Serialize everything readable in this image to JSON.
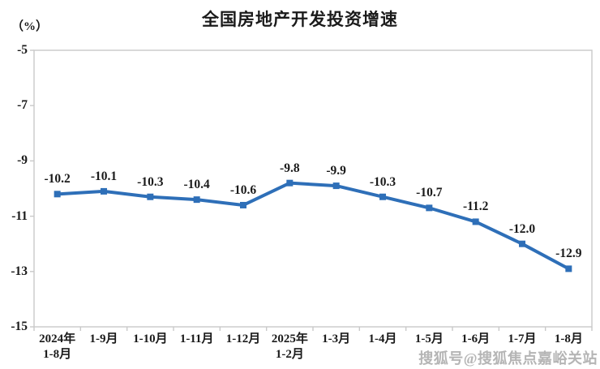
{
  "chart_data": {
    "type": "line",
    "title": "全国房地产开发投资增速",
    "unit_label": "（%）",
    "categories": [
      "2024年\n1-8月",
      "1-9月",
      "1-10月",
      "1-11月",
      "1-12月",
      "2025年\n1-2月",
      "1-3月",
      "1-4月",
      "1-5月",
      "1-6月",
      "1-7月",
      "1-8月"
    ],
    "values": [
      -10.2,
      -10.1,
      -10.3,
      -10.4,
      -10.6,
      -9.8,
      -9.9,
      -10.3,
      -10.7,
      -11.2,
      -12.0,
      -12.9
    ],
    "data_labels": [
      "-10.2",
      "-10.1",
      "-10.3",
      "-10.4",
      "-10.6",
      "-9.8",
      "-9.9",
      "-10.3",
      "-10.7",
      "-11.2",
      "-12.0",
      "-12.9"
    ],
    "xlabel": "",
    "ylabel": "（%）",
    "ylim": [
      -15,
      -5
    ],
    "yticks": [
      -5,
      -7,
      -9,
      -11,
      -13,
      -15
    ],
    "grid": false,
    "legend_position": "none",
    "line_color": "#2e6fb8",
    "marker_shape": "square",
    "axis_color": "#c9c9c9",
    "text_color": "#1a1a1a"
  },
  "watermark": {
    "text": "搜狐号@搜狐焦点嘉峪关站",
    "color": "#a3a3a3"
  }
}
